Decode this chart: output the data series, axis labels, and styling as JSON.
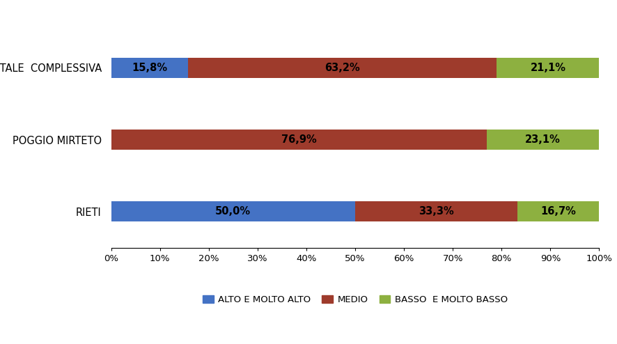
{
  "categories": [
    "RIETI",
    "POGGIO MIRTETO",
    "TOTALE  COMPLESSIVA"
  ],
  "series": [
    {
      "name": "ALTO E MOLTO ALTO",
      "values": [
        50.0,
        0.0,
        15.8
      ],
      "color": "#4472C4"
    },
    {
      "name": "MEDIO",
      "values": [
        33.3,
        76.9,
        63.2
      ],
      "color": "#9E3B2C"
    },
    {
      "name": "BASSO  E MOLTO BASSO",
      "values": [
        16.7,
        23.1,
        21.1
      ],
      "color": "#8DB040"
    }
  ],
  "labels": [
    [
      "50,0%",
      "33,3%",
      "16,7%"
    ],
    [
      "",
      "76,9%",
      "23,1%"
    ],
    [
      "15,8%",
      "63,2%",
      "21,1%"
    ]
  ],
  "bar_positions": [
    0,
    1,
    2
  ],
  "xlim": [
    0,
    100
  ],
  "xticks": [
    0,
    10,
    20,
    30,
    40,
    50,
    60,
    70,
    80,
    90,
    100
  ],
  "xtick_labels": [
    "0%",
    "10%",
    "20%",
    "30%",
    "40%",
    "50%",
    "60%",
    "70%",
    "80%",
    "90%",
    "100%"
  ],
  "bar_height": 0.28,
  "background_color": "#FFFFFF",
  "label_fontsize": 10.5,
  "tick_fontsize": 9.5,
  "category_fontsize": 10.5,
  "legend_fontsize": 9.5
}
